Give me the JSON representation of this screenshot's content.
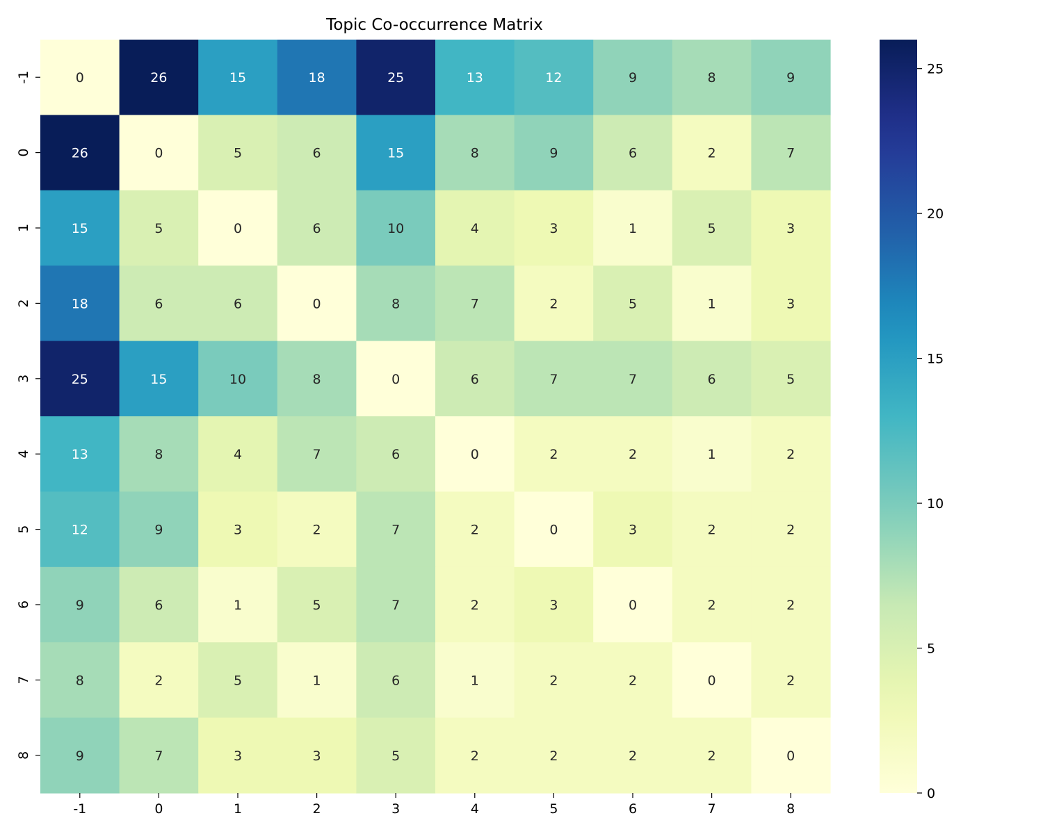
{
  "chart_data": {
    "type": "heatmap",
    "title": "Topic Co-occurrence Matrix",
    "xlabel": "",
    "ylabel": "",
    "x_categories": [
      "-1",
      "0",
      "1",
      "2",
      "3",
      "4",
      "5",
      "6",
      "7",
      "8"
    ],
    "y_categories": [
      "-1",
      "0",
      "1",
      "2",
      "3",
      "4",
      "5",
      "6",
      "7",
      "8"
    ],
    "values": [
      [
        0,
        26,
        15,
        18,
        25,
        13,
        12,
        9,
        8,
        9
      ],
      [
        26,
        0,
        5,
        6,
        15,
        8,
        9,
        6,
        2,
        7
      ],
      [
        15,
        5,
        0,
        6,
        10,
        4,
        3,
        1,
        5,
        3
      ],
      [
        18,
        6,
        6,
        0,
        8,
        7,
        2,
        5,
        1,
        3
      ],
      [
        25,
        15,
        10,
        8,
        0,
        6,
        7,
        7,
        6,
        5
      ],
      [
        13,
        8,
        4,
        7,
        6,
        0,
        2,
        2,
        1,
        2
      ],
      [
        12,
        9,
        3,
        2,
        7,
        2,
        0,
        3,
        2,
        2
      ],
      [
        9,
        6,
        1,
        5,
        7,
        2,
        3,
        0,
        2,
        2
      ],
      [
        8,
        2,
        5,
        1,
        6,
        1,
        2,
        2,
        0,
        2
      ],
      [
        9,
        7,
        3,
        3,
        5,
        2,
        2,
        2,
        2,
        0
      ]
    ],
    "annotated": true,
    "colormap": "YlGnBu",
    "vmin": 0,
    "vmax": 26,
    "colorbar_ticks": [
      0,
      5,
      10,
      15,
      20,
      25
    ],
    "grid": false
  }
}
